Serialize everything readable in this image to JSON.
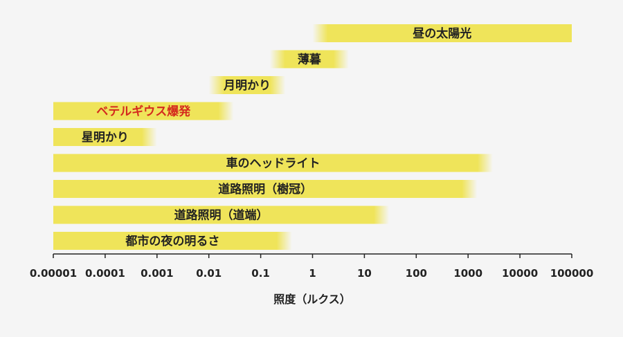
{
  "chart_data": {
    "type": "range-bar",
    "title": "",
    "xlabel": "照度（ルクス）",
    "ylabel": "",
    "x_scale": "log",
    "xlim": [
      1e-05,
      100000
    ],
    "grid": false,
    "legend": "none",
    "ticks": [
      "0.00001",
      "0.0001",
      "0.001",
      "0.01",
      "0.1",
      "1",
      "10",
      "100",
      "1000",
      "10000",
      "100000"
    ],
    "bar_color": "#efe45a",
    "highlight_color": "#d42a1e",
    "bars": [
      {
        "label": "昼の太陽光",
        "min": 1,
        "max": 100000,
        "highlight": false
      },
      {
        "label": "薄暮",
        "min": 0.15,
        "max": 5,
        "highlight": false
      },
      {
        "label": "月明かり",
        "min": 0.01,
        "max": 0.3,
        "highlight": false
      },
      {
        "label": "ベテルギウス爆発",
        "min": 1e-05,
        "max": 0.03,
        "highlight": true
      },
      {
        "label": "星明かり",
        "min": 1e-05,
        "max": 0.001,
        "highlight": false
      },
      {
        "label": "車のヘッドライト",
        "min": 1e-05,
        "max": 3000,
        "highlight": false
      },
      {
        "label": "道路照明（樹冠）",
        "min": 1e-05,
        "max": 1500,
        "highlight": false
      },
      {
        "label": "道路照明（道端）",
        "min": 1e-05,
        "max": 30,
        "highlight": false
      },
      {
        "label": "都市の夜の明るさ",
        "min": 1e-05,
        "max": 0.4,
        "highlight": false
      }
    ]
  }
}
